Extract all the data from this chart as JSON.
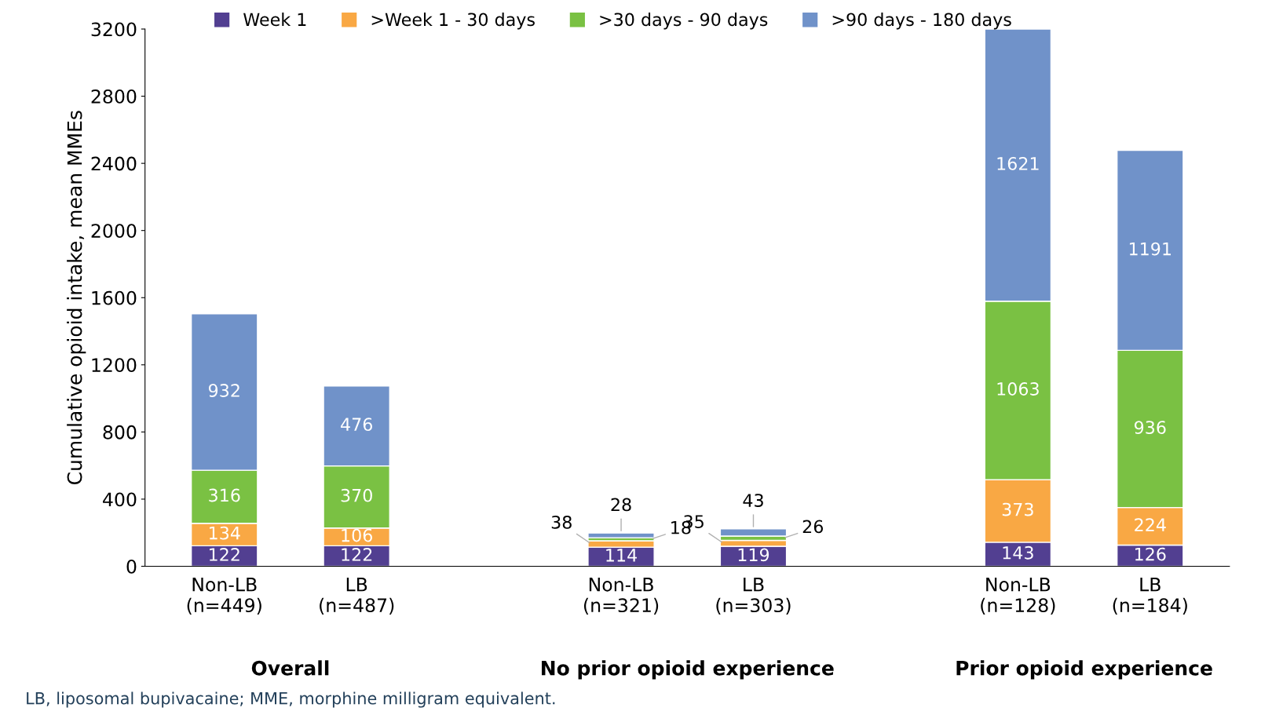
{
  "chart_data": {
    "type": "bar",
    "stacked": true,
    "categories": [
      "Non-LB\n(n=449)",
      "LB\n(n=487)",
      null,
      "Non-LB\n(n=321)",
      "LB\n(n=303)",
      null,
      "Non-LB\n(n=128)",
      "LB\n(n=184)"
    ],
    "series": [
      {
        "name": "Week 1",
        "color": "#523f91",
        "values": [
          122,
          122,
          null,
          114,
          119,
          null,
          143,
          126
        ]
      },
      {
        "name": ">Week 1 - 30 days",
        "color": "#f9a844",
        "values": [
          134,
          106,
          null,
          38,
          35,
          null,
          373,
          224
        ]
      },
      {
        "name": ">30 days - 90 days",
        "color": "#7ac143",
        "values": [
          316,
          370,
          null,
          18,
          26,
          null,
          1063,
          936
        ]
      },
      {
        "name": ">90 days - 180 days",
        "color": "#7092c9",
        "values": [
          932,
          476,
          null,
          28,
          43,
          null,
          1621,
          1191
        ]
      }
    ],
    "ylabel": "Cumulative opioid intake, mean MMEs",
    "ylim": [
      0,
      3200
    ],
    "yticks": [
      0,
      400,
      800,
      1200,
      1600,
      2000,
      2400,
      2800,
      3200
    ],
    "data_labels": true,
    "grid": false,
    "legend": "top",
    "annotations": [
      "Overall",
      "No prior opioid experience",
      "Prior opioid experience",
      "LB, liposomal bupivacaine; MME, morphine milligram equivalent."
    ]
  }
}
